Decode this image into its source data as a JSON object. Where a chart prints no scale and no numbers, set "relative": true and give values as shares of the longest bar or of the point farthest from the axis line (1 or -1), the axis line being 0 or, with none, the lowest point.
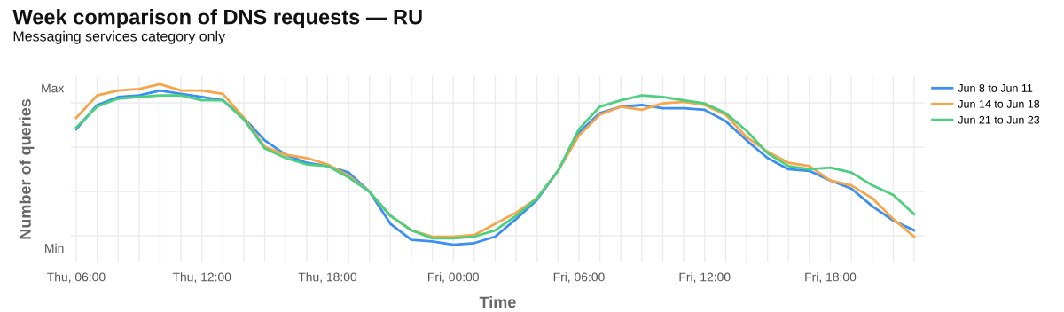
{
  "chart_data": {
    "type": "line",
    "title": "Week comparison of DNS requests — RU",
    "subtitle": "Messaging services category only",
    "xlabel": "Time",
    "ylabel": "Number of queries",
    "relative": true,
    "categories": [
      "Thu, 06:00",
      null,
      null,
      null,
      null,
      null,
      "Thu, 12:00",
      null,
      null,
      null,
      null,
      null,
      "Thu, 18:00",
      null,
      null,
      null,
      null,
      null,
      "Fri, 00:00",
      null,
      null,
      null,
      null,
      null,
      "Fri, 06:00",
      null,
      null,
      null,
      null,
      null,
      "Fri, 12:00",
      null,
      null,
      null,
      null,
      null,
      "Fri, 18:00",
      null,
      null,
      null,
      null
    ],
    "series": [
      {
        "name": "Jun 8 to Jun 11",
        "color": "#3b8ff0",
        "values": [
          0.72,
          0.87,
          0.92,
          0.93,
          0.96,
          0.94,
          0.92,
          0.9,
          0.79,
          0.65,
          0.56,
          0.51,
          0.49,
          0.45,
          0.33,
          0.13,
          0.03,
          0.02,
          0.0,
          0.01,
          0.05,
          0.16,
          0.28,
          0.46,
          0.7,
          0.82,
          0.86,
          0.87,
          0.85,
          0.85,
          0.84,
          0.77,
          0.65,
          0.54,
          0.47,
          0.46,
          0.4,
          0.35,
          0.24,
          0.15,
          0.09
        ]
      },
      {
        "name": "Jun 14 to Jun 18",
        "color": "#f6a54a",
        "values": [
          0.79,
          0.93,
          0.96,
          0.97,
          1.0,
          0.96,
          0.96,
          0.94,
          0.79,
          0.61,
          0.56,
          0.54,
          0.5,
          0.43,
          0.33,
          0.18,
          0.09,
          0.05,
          0.05,
          0.06,
          0.13,
          0.2,
          0.29,
          0.46,
          0.68,
          0.81,
          0.86,
          0.84,
          0.88,
          0.89,
          0.87,
          0.81,
          0.67,
          0.58,
          0.51,
          0.49,
          0.4,
          0.37,
          0.29,
          0.16,
          0.05
        ]
      },
      {
        "name": "Jun 21 to Jun 23",
        "color": "#4cd080",
        "values": [
          0.73,
          0.86,
          0.91,
          0.92,
          0.93,
          0.93,
          0.9,
          0.9,
          0.78,
          0.6,
          0.54,
          0.5,
          0.49,
          0.42,
          0.33,
          0.18,
          0.09,
          0.04,
          0.04,
          0.05,
          0.09,
          0.18,
          0.29,
          0.46,
          0.72,
          0.86,
          0.9,
          0.93,
          0.92,
          0.9,
          0.88,
          0.82,
          0.71,
          0.57,
          0.49,
          0.47,
          0.48,
          0.45,
          0.37,
          0.31,
          0.19
        ]
      }
    ],
    "annotations": [
      "Max",
      "Min"
    ],
    "grid": true,
    "legend": "top right",
    "marker": "none",
    "line_style": "solid"
  }
}
